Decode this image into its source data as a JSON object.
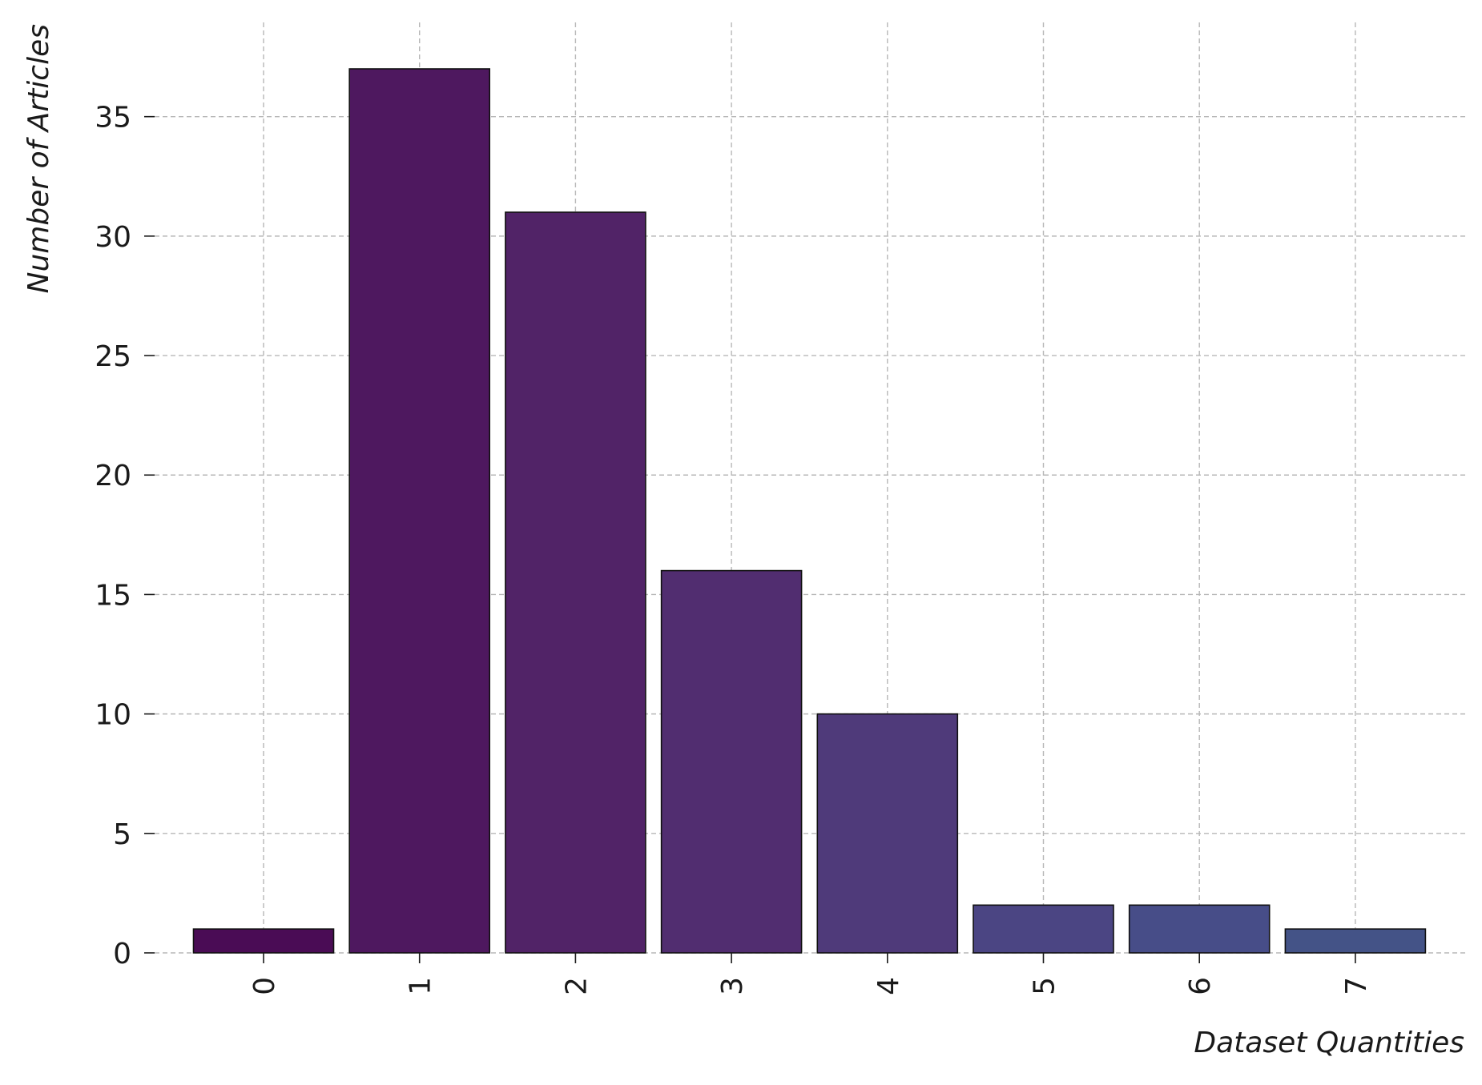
{
  "chart_data": {
    "type": "bar",
    "categories": [
      "0",
      "1",
      "2",
      "3",
      "4",
      "5",
      "6",
      "7"
    ],
    "values": [
      1,
      37,
      31,
      16,
      10,
      2,
      2,
      1
    ],
    "bar_colors": [
      "#4a0c55",
      "#4e185f",
      "#512367",
      "#512d70",
      "#4f3a7a",
      "#4b4583",
      "#474d88",
      "#445387"
    ],
    "title": "",
    "xlabel": "Dataset Quantities",
    "ylabel": "Number of Articles",
    "ylim": [
      0,
      39
    ],
    "yticks": [
      0,
      5,
      10,
      15,
      20,
      25,
      30,
      35
    ],
    "grid": true,
    "legend": "none",
    "x_tick_rotation": "vertical"
  }
}
